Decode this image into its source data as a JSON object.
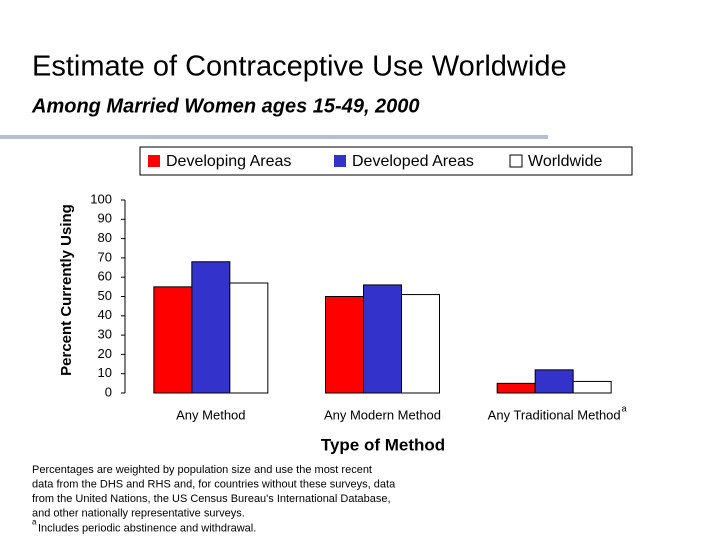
{
  "chart_data": {
    "type": "bar",
    "title": "Estimate of Contraceptive Use Worldwide",
    "subtitle": "Among Married Women ages 15-49, 2000",
    "y_label": "Percent Currently Using",
    "x_label": "Type of Method",
    "categories": [
      "Any Method",
      "Any Modern Method",
      "Any Traditional Method"
    ],
    "footnote_marker": "a",
    "series": [
      {
        "name": "Developing Areas",
        "color": "#ff0000",
        "values": [
          55,
          50,
          5
        ]
      },
      {
        "name": "Developed Areas",
        "color": "#3333cc",
        "values": [
          68,
          56,
          12
        ]
      },
      {
        "name": "Worldwide",
        "color": "#ffffff",
        "values": [
          57,
          51,
          6
        ]
      }
    ],
    "ylim": [
      0,
      100
    ],
    "yticks": [
      0,
      10,
      20,
      30,
      40,
      50,
      60,
      70,
      80,
      90,
      100
    ],
    "grid": false,
    "legend": "top",
    "footnote": [
      "Percentages are weighted by population size and use the most recent",
      "data from the DHS and RHS and, for countries without these surveys, data",
      "from the United Nations, the US Census Bureau's International Database,",
      "and other nationally representative surveys.",
      "Includes periodic abstinence and withdrawal."
    ]
  }
}
